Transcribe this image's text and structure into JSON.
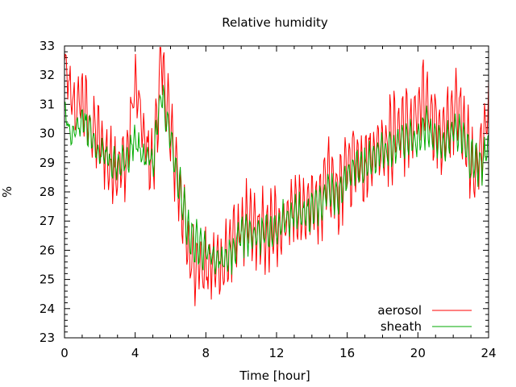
{
  "chart_data": {
    "type": "line",
    "title": "Relative humidity",
    "xlabel": "Time [hour]",
    "ylabel": "%",
    "xlim": [
      0,
      24
    ],
    "ylim": [
      23,
      33
    ],
    "xticks": [
      0,
      4,
      8,
      12,
      16,
      20,
      24
    ],
    "yticks": [
      23,
      24,
      25,
      26,
      27,
      28,
      29,
      30,
      31,
      32,
      33
    ],
    "grid": false,
    "legend_position": "bottom-right",
    "series": [
      {
        "name": "aerosol",
        "color": "#ff0000",
        "x": [
          0,
          0.5,
          1,
          1.5,
          2,
          2.5,
          3,
          3.5,
          4,
          4.5,
          5,
          5.5,
          6,
          6.5,
          7,
          7.5,
          8,
          8.5,
          9,
          9.5,
          10,
          10.5,
          11,
          11.5,
          12,
          12.5,
          13,
          13.5,
          14,
          14.5,
          15,
          15.5,
          16,
          16.5,
          17,
          17.5,
          18,
          18.5,
          19,
          19.5,
          20,
          20.5,
          21,
          21.5,
          22,
          22.5,
          23,
          23.5,
          24
        ],
        "y": [
          32.3,
          30.8,
          31.2,
          30.2,
          29.8,
          29.0,
          28.9,
          29.0,
          31.8,
          29.7,
          28.9,
          32.5,
          30.0,
          28.2,
          26.0,
          25.7,
          25.3,
          25.5,
          25.6,
          26.2,
          26.8,
          26.8,
          26.6,
          26.5,
          26.8,
          27.1,
          27.5,
          27.2,
          27.5,
          27.8,
          28.3,
          28.0,
          28.8,
          29.2,
          29.0,
          29.4,
          29.7,
          29.8,
          30.3,
          30.1,
          30.6,
          31.2,
          30.3,
          29.8,
          30.8,
          30.7,
          29.0,
          29.0,
          30.9
        ]
      },
      {
        "name": "sheath",
        "color": "#00aa00",
        "x": [
          0,
          0.5,
          1,
          1.5,
          2,
          2.5,
          3,
          3.5,
          4,
          4.5,
          5,
          5.5,
          6,
          6.5,
          7,
          7.5,
          8,
          8.5,
          9,
          9.5,
          10,
          10.5,
          11,
          11.5,
          12,
          12.5,
          13,
          13.5,
          14,
          14.5,
          15,
          15.5,
          16,
          16.5,
          17,
          17.5,
          18,
          18.5,
          19,
          19.5,
          20,
          20.5,
          21,
          21.5,
          22,
          22.5,
          23,
          23.5,
          24
        ],
        "y": [
          30.8,
          29.8,
          30.5,
          30.0,
          29.4,
          29.1,
          28.8,
          29.1,
          29.8,
          29.2,
          29.0,
          31.5,
          29.8,
          28.3,
          26.6,
          26.2,
          25.9,
          25.8,
          25.6,
          26.0,
          26.5,
          26.6,
          26.5,
          26.6,
          26.8,
          27.0,
          27.3,
          27.2,
          27.4,
          27.6,
          28.0,
          27.9,
          28.5,
          28.8,
          28.9,
          29.2,
          29.4,
          29.5,
          29.8,
          29.7,
          29.9,
          30.2,
          29.8,
          29.6,
          30.1,
          30.0,
          29.1,
          28.8,
          29.6
        ]
      }
    ]
  }
}
